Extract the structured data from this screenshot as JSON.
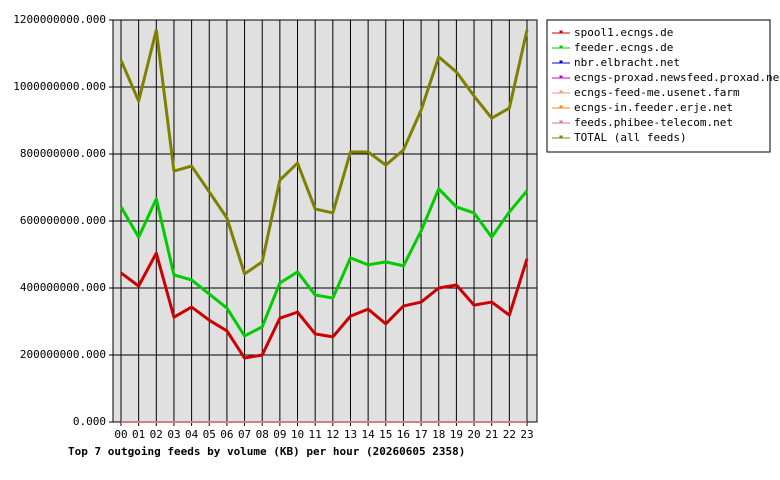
{
  "chart_data": {
    "type": "line",
    "title": "Top 7 outgoing feeds by volume (KB) per hour (20260605 2358)",
    "categories": [
      "00",
      "01",
      "02",
      "03",
      "04",
      "05",
      "06",
      "07",
      "08",
      "09",
      "10",
      "11",
      "12",
      "13",
      "14",
      "15",
      "16",
      "17",
      "18",
      "19",
      "20",
      "21",
      "22",
      "23"
    ],
    "series": [
      {
        "name": "spool1.ecngs.de",
        "color": "#cc0000",
        "values": [
          445000000,
          406000000,
          504000000,
          313000000,
          343000000,
          304000000,
          272000000,
          191000000,
          200000000,
          310000000,
          328000000,
          263000000,
          254000000,
          316000000,
          337000000,
          293000000,
          346000000,
          358000000,
          400000000,
          409000000,
          349000000,
          358000000,
          319000000,
          487000000
        ]
      },
      {
        "name": "feeder.ecngs.de",
        "color": "#00cc00",
        "values": [
          642000000,
          552000000,
          666000000,
          439000000,
          424000000,
          382000000,
          340000000,
          257000000,
          284000000,
          415000000,
          448000000,
          379000000,
          370000000,
          490000000,
          469000000,
          478000000,
          466000000,
          570000000,
          696000000,
          642000000,
          624000000,
          552000000,
          627000000,
          690000000
        ]
      },
      {
        "name": "nbr.elbracht.net",
        "color": "#0000cc",
        "values": [
          0,
          0,
          0,
          0,
          0,
          0,
          0,
          0,
          0,
          0,
          0,
          0,
          0,
          0,
          0,
          0,
          0,
          0,
          0,
          0,
          0,
          0,
          0,
          0
        ]
      },
      {
        "name": "ecngs-proxad.newsfeed.proxad.net",
        "color": "#cc00cc",
        "values": [
          0,
          0,
          0,
          0,
          0,
          0,
          0,
          0,
          0,
          0,
          0,
          0,
          0,
          0,
          0,
          0,
          0,
          0,
          0,
          0,
          0,
          0,
          0,
          0
        ]
      },
      {
        "name": "ecngs-feed-me.usenet.farm",
        "color": "#ff9080",
        "values": [
          0,
          0,
          0,
          0,
          0,
          0,
          0,
          0,
          0,
          0,
          0,
          0,
          0,
          0,
          0,
          0,
          0,
          0,
          0,
          0,
          0,
          0,
          0,
          0
        ]
      },
      {
        "name": "ecngs-in.feeder.erje.net",
        "color": "#ff8800",
        "values": [
          0,
          0,
          0,
          0,
          0,
          0,
          0,
          0,
          0,
          0,
          0,
          0,
          0,
          0,
          0,
          0,
          0,
          0,
          0,
          0,
          0,
          0,
          0,
          0
        ]
      },
      {
        "name": "feeds.phibee-telecom.net",
        "color": "#d08080",
        "values": [
          0,
          0,
          0,
          0,
          0,
          0,
          0,
          0,
          0,
          0,
          0,
          0,
          0,
          0,
          0,
          0,
          0,
          0,
          0,
          0,
          0,
          0,
          0,
          0
        ]
      },
      {
        "name": "TOTAL (all feeds)",
        "color": "#808000",
        "values": [
          1080000000,
          958000000,
          1170000000,
          749000000,
          764000000,
          687000000,
          609000000,
          442000000,
          478000000,
          722000000,
          773000000,
          636000000,
          624000000,
          806000000,
          806000000,
          767000000,
          812000000,
          931000000,
          1090000000,
          1045000000,
          973000000,
          907000000,
          937000000,
          1170000000
        ]
      }
    ],
    "ylim": [
      0,
      1200000000
    ],
    "yticks": [
      {
        "value": 0,
        "label": "0.000"
      },
      {
        "value": 200000000,
        "label": "200000000.000"
      },
      {
        "value": 400000000,
        "label": "400000000.000"
      },
      {
        "value": 600000000,
        "label": "600000000.000"
      },
      {
        "value": 800000000,
        "label": "800000000.000"
      },
      {
        "value": 1000000000,
        "label": "1000000000.000"
      },
      {
        "value": 1200000000,
        "label": "1200000000.000"
      }
    ],
    "grid": true,
    "legend": "right"
  }
}
